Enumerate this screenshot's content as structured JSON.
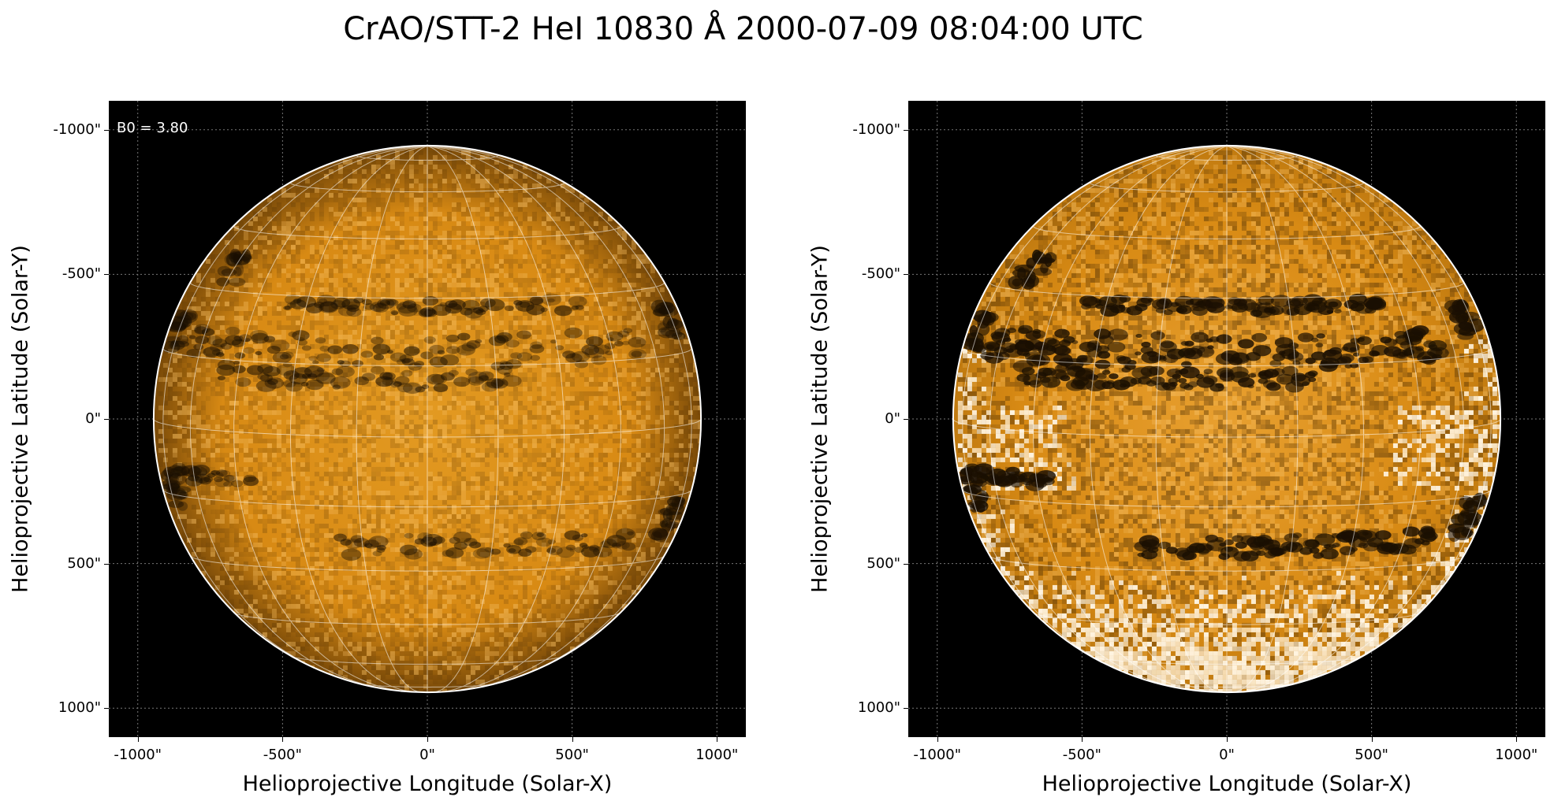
{
  "title": "CrAO/STT-2 HeI 10830 Å 2000-07-09 08:04:00 UTC",
  "annotation": "B0 = 3.80",
  "axes": {
    "xlabel": "Helioprojective Longitude (Solar-X)",
    "ylabel": "Helioprojective Latitude (Solar-Y)",
    "xticks": [
      "-1000\"",
      "-500\"",
      "0\"",
      "500\"",
      "1000\""
    ],
    "yticks": [
      "1000\"",
      "500\"",
      "0\"",
      "-500\"",
      "-1000\""
    ],
    "tick_values": [
      -1000,
      -500,
      0,
      500,
      1000
    ],
    "range": [
      -1100,
      1100
    ]
  },
  "solar_radius_arcsec": 945,
  "b0_deg": 3.8,
  "colors": {
    "background": "#000000",
    "disk_base": "#d88a14",
    "disk_limb": "#7a4a08",
    "grid": "#ffffff",
    "dark_feature": "#1a0f02",
    "bright_feature": "#fff4e0"
  },
  "panels": [
    {
      "id": "left",
      "contrast": "normal",
      "annotation_shown": true
    },
    {
      "id": "right",
      "contrast": "enhanced",
      "annotation_shown": false
    }
  ]
}
